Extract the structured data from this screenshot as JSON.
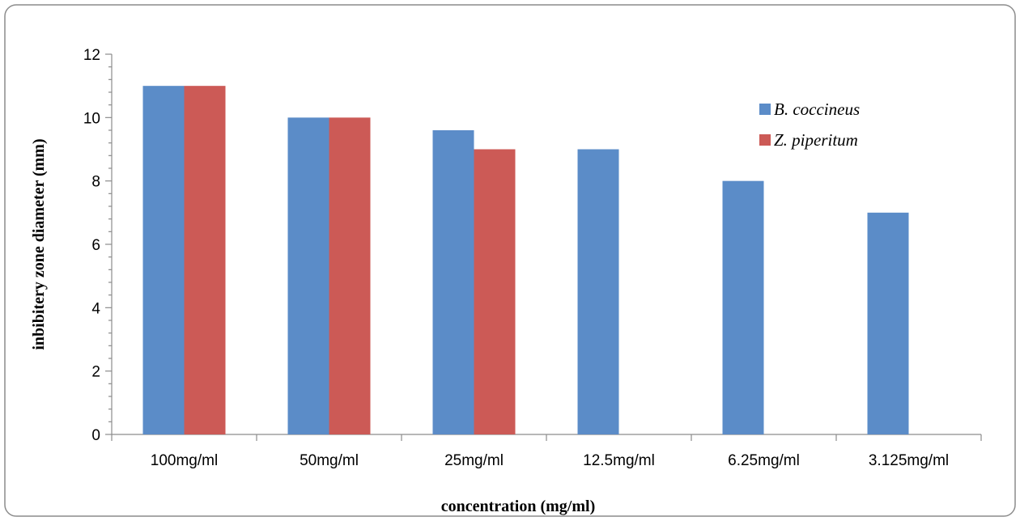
{
  "chart_data": {
    "type": "bar",
    "categories": [
      "100mg/ml",
      "50mg/ml",
      "25mg/ml",
      "12.5mg/ml",
      "6.25mg/ml",
      "3.125mg/ml"
    ],
    "series": [
      {
        "name": "B. coccineus",
        "color": "#5b8cc8",
        "values": [
          11,
          10,
          9.6,
          9,
          8,
          7
        ]
      },
      {
        "name": "Z. piperitum",
        "color": "#cc5a56",
        "values": [
          11,
          10,
          9,
          0,
          0,
          0
        ]
      }
    ],
    "xlabel": "concentration (mg/ml)",
    "ylabel": "inbibitery zone diameter (mm)",
    "ylim": [
      0,
      12
    ],
    "yticks": [
      "0",
      "2",
      "4",
      "6",
      "8",
      "10",
      "12"
    ],
    "grid": false,
    "legend_position": "top-right"
  }
}
